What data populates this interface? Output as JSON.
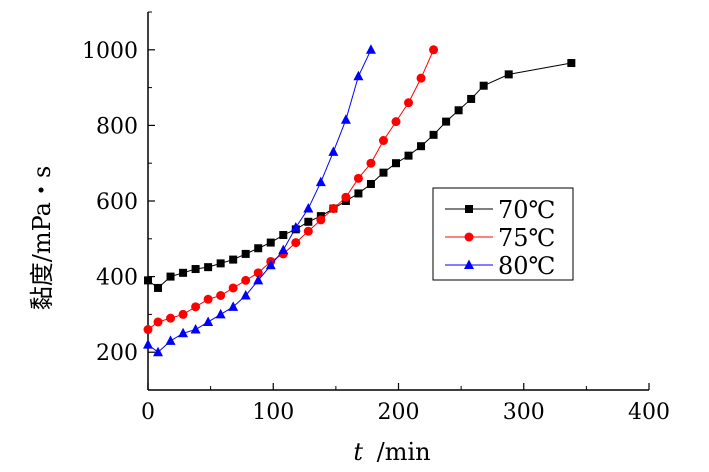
{
  "chart_data": {
    "type": "line",
    "xlabel_var": "t",
    "xlabel_unit": "/min",
    "ylabel": "黏度/mPa・s",
    "xlim": [
      0,
      400
    ],
    "ylim": [
      100,
      1100
    ],
    "xticks": [
      "0",
      "100",
      "200",
      "300",
      "400"
    ],
    "yticks": [
      "200",
      "400",
      "600",
      "800",
      "1000"
    ],
    "grid": false,
    "legend_position": "right",
    "series": [
      {
        "name": "70℃",
        "color": "#000000",
        "marker": "square",
        "x": [
          0,
          8,
          18,
          28,
          38,
          48,
          58,
          68,
          78,
          88,
          98,
          108,
          118,
          128,
          138,
          148,
          158,
          168,
          178,
          188,
          198,
          208,
          218,
          228,
          238,
          248,
          258,
          268,
          288,
          338
        ],
        "y": [
          390,
          370,
          400,
          410,
          420,
          425,
          435,
          445,
          460,
          475,
          490,
          510,
          525,
          545,
          560,
          580,
          600,
          620,
          645,
          675,
          700,
          720,
          745,
          775,
          810,
          840,
          870,
          905,
          935,
          965
        ]
      },
      {
        "name": "75℃",
        "color": "#ff0000",
        "marker": "circle",
        "x": [
          0,
          8,
          18,
          28,
          38,
          48,
          58,
          68,
          78,
          88,
          98,
          108,
          118,
          128,
          138,
          148,
          158,
          168,
          178,
          188,
          198,
          208,
          218,
          228
        ],
        "y": [
          260,
          280,
          290,
          300,
          320,
          340,
          350,
          370,
          390,
          410,
          440,
          460,
          490,
          520,
          550,
          580,
          610,
          660,
          700,
          760,
          810,
          860,
          925,
          1000
        ]
      },
      {
        "name": "80℃",
        "color": "#0000ff",
        "marker": "triangle",
        "x": [
          0,
          8,
          18,
          28,
          38,
          48,
          58,
          68,
          78,
          88,
          98,
          108,
          118,
          128,
          138,
          148,
          158,
          168,
          178
        ],
        "y": [
          220,
          200,
          230,
          250,
          260,
          280,
          300,
          320,
          350,
          390,
          430,
          470,
          530,
          580,
          650,
          730,
          815,
          930,
          1000
        ]
      }
    ]
  }
}
